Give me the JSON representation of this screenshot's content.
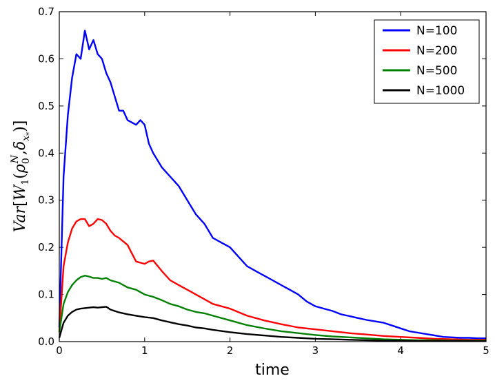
{
  "chart_data": {
    "type": "line",
    "title": "",
    "xlabel": "time",
    "ylabel": "Var[W_1(ρ_0^N, δ_x*)]",
    "ylabel_parts": {
      "pre": "Var",
      "lbracket": "[",
      "W": "W",
      "w_sub": "1",
      "lparen": "(",
      "rho": "ρ",
      "rho_sub": "0",
      "rho_sup": "N",
      "comma": ",",
      "delta": "δ",
      "delta_sub": "x",
      "delta_subsub": "*",
      "rparen": ")",
      "rbracket": "]"
    },
    "xlim": [
      0,
      5
    ],
    "ylim": [
      0,
      0.7
    ],
    "xticks": [
      0,
      1,
      2,
      3,
      4,
      5
    ],
    "xtick_labels": [
      "0",
      "1",
      "2",
      "3",
      "4",
      "5"
    ],
    "yticks": [
      0,
      0.1,
      0.2,
      0.3,
      0.4,
      0.5,
      0.6,
      0.7
    ],
    "ytick_labels": [
      "0.0",
      "0.1",
      "0.2",
      "0.3",
      "0.4",
      "0.5",
      "0.6",
      "0.7"
    ],
    "grid": false,
    "legend_position": "top-right",
    "series": [
      {
        "name": "N=100",
        "color": "#0000ff",
        "x": [
          0,
          0.05,
          0.1,
          0.15,
          0.2,
          0.25,
          0.3,
          0.35,
          0.4,
          0.45,
          0.5,
          0.55,
          0.6,
          0.65,
          0.7,
          0.75,
          0.8,
          0.9,
          0.95,
          1.0,
          1.05,
          1.1,
          1.2,
          1.3,
          1.4,
          1.5,
          1.6,
          1.7,
          1.8,
          1.9,
          2.0,
          2.1,
          2.2,
          2.3,
          2.4,
          2.5,
          2.6,
          2.7,
          2.8,
          2.9,
          3.0,
          3.1,
          3.2,
          3.3,
          3.4,
          3.5,
          3.6,
          3.7,
          3.8,
          3.9,
          4.0,
          4.1,
          4.2,
          4.3,
          4.4,
          4.5,
          4.6,
          4.7,
          4.8,
          4.9,
          5.0
        ],
        "y": [
          0.03,
          0.35,
          0.48,
          0.56,
          0.61,
          0.6,
          0.66,
          0.62,
          0.64,
          0.61,
          0.6,
          0.57,
          0.55,
          0.52,
          0.49,
          0.49,
          0.47,
          0.46,
          0.47,
          0.46,
          0.42,
          0.4,
          0.37,
          0.35,
          0.33,
          0.3,
          0.27,
          0.25,
          0.22,
          0.21,
          0.2,
          0.18,
          0.16,
          0.15,
          0.14,
          0.13,
          0.12,
          0.11,
          0.1,
          0.085,
          0.075,
          0.07,
          0.065,
          0.058,
          0.054,
          0.05,
          0.046,
          0.043,
          0.04,
          0.034,
          0.028,
          0.022,
          0.019,
          0.016,
          0.013,
          0.01,
          0.009,
          0.008,
          0.008,
          0.007,
          0.007
        ]
      },
      {
        "name": "N=200",
        "color": "#ff0000",
        "x": [
          0,
          0.05,
          0.1,
          0.15,
          0.2,
          0.25,
          0.3,
          0.35,
          0.4,
          0.45,
          0.5,
          0.55,
          0.6,
          0.65,
          0.7,
          0.8,
          0.9,
          1.0,
          1.05,
          1.1,
          1.2,
          1.3,
          1.4,
          1.5,
          1.6,
          1.7,
          1.8,
          1.9,
          2.0,
          2.2,
          2.4,
          2.6,
          2.8,
          3.0,
          3.2,
          3.4,
          3.6,
          3.8,
          4.0,
          4.2,
          4.4,
          4.6,
          4.8,
          5.0
        ],
        "y": [
          0.02,
          0.16,
          0.21,
          0.24,
          0.255,
          0.26,
          0.26,
          0.245,
          0.25,
          0.26,
          0.258,
          0.25,
          0.235,
          0.225,
          0.22,
          0.205,
          0.17,
          0.165,
          0.17,
          0.172,
          0.15,
          0.13,
          0.12,
          0.11,
          0.1,
          0.09,
          0.08,
          0.075,
          0.07,
          0.055,
          0.045,
          0.037,
          0.03,
          0.026,
          0.022,
          0.018,
          0.015,
          0.012,
          0.01,
          0.008,
          0.006,
          0.005,
          0.004,
          0.004
        ]
      },
      {
        "name": "N=500",
        "color": "#008000",
        "x": [
          0,
          0.05,
          0.1,
          0.15,
          0.2,
          0.25,
          0.3,
          0.35,
          0.4,
          0.45,
          0.5,
          0.55,
          0.6,
          0.7,
          0.8,
          0.9,
          1.0,
          1.1,
          1.2,
          1.3,
          1.4,
          1.5,
          1.6,
          1.7,
          1.8,
          2.0,
          2.2,
          2.4,
          2.6,
          2.8,
          3.0,
          3.2,
          3.4,
          3.6,
          3.8,
          4.0,
          4.2,
          4.4,
          4.6,
          4.8,
          5.0
        ],
        "y": [
          0.02,
          0.08,
          0.105,
          0.12,
          0.13,
          0.137,
          0.14,
          0.138,
          0.135,
          0.135,
          0.133,
          0.135,
          0.13,
          0.125,
          0.115,
          0.11,
          0.1,
          0.095,
          0.088,
          0.08,
          0.075,
          0.068,
          0.063,
          0.06,
          0.055,
          0.045,
          0.035,
          0.028,
          0.022,
          0.018,
          0.014,
          0.011,
          0.009,
          0.007,
          0.005,
          0.004,
          0.003,
          0.003,
          0.002,
          0.002,
          0.002
        ]
      },
      {
        "name": "N=1000",
        "color": "#000000",
        "x": [
          0,
          0.05,
          0.1,
          0.15,
          0.2,
          0.25,
          0.3,
          0.35,
          0.4,
          0.45,
          0.5,
          0.55,
          0.6,
          0.7,
          0.8,
          0.9,
          1.0,
          1.1,
          1.2,
          1.3,
          1.4,
          1.5,
          1.6,
          1.7,
          1.8,
          2.0,
          2.2,
          2.4,
          2.6,
          2.8,
          3.0,
          3.2,
          3.4,
          3.6,
          3.8,
          4.0,
          4.2,
          4.4,
          4.6,
          4.8,
          5.0
        ],
        "y": [
          0.008,
          0.04,
          0.055,
          0.063,
          0.068,
          0.07,
          0.071,
          0.072,
          0.073,
          0.072,
          0.073,
          0.074,
          0.068,
          0.062,
          0.058,
          0.055,
          0.052,
          0.05,
          0.045,
          0.041,
          0.037,
          0.034,
          0.03,
          0.028,
          0.025,
          0.02,
          0.016,
          0.013,
          0.01,
          0.008,
          0.006,
          0.005,
          0.004,
          0.003,
          0.002,
          0.002,
          0.001,
          0.001,
          0.001,
          0.001,
          0.001
        ]
      }
    ]
  }
}
